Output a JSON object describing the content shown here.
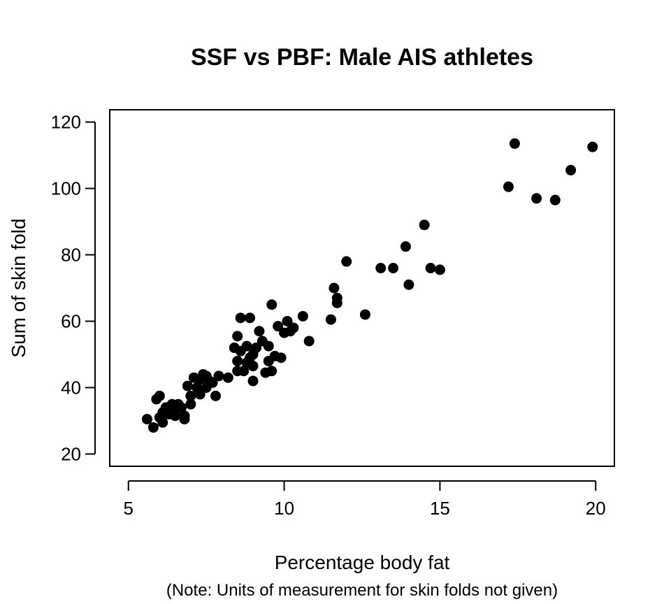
{
  "chart_data": {
    "type": "scatter",
    "title": "SSF vs PBF: Male AIS athletes",
    "xlabel": "Percentage body fat",
    "ylabel": "Sum of skin fold",
    "note": "(Note: Units of measurement for skin folds not given)",
    "xlim": [
      4.4,
      20.6
    ],
    "ylim": [
      16.3,
      123.7
    ],
    "xticks": [
      5,
      10,
      15,
      20
    ],
    "yticks": [
      20,
      40,
      60,
      80,
      100,
      120
    ],
    "grid": false,
    "legend": "none",
    "point_color": "#000000",
    "series": [
      {
        "points": [
          [
            5.6,
            30.5
          ],
          [
            5.8,
            28.0
          ],
          [
            5.9,
            36.5
          ],
          [
            6.0,
            37.5
          ],
          [
            6.0,
            31.0
          ],
          [
            6.1,
            32.5
          ],
          [
            6.1,
            29.5
          ],
          [
            6.2,
            34.0
          ],
          [
            6.3,
            32.0
          ],
          [
            6.4,
            35.0
          ],
          [
            6.5,
            31.5
          ],
          [
            6.5,
            33.0
          ],
          [
            6.6,
            35.0
          ],
          [
            6.7,
            34.0
          ],
          [
            6.8,
            30.5
          ],
          [
            6.8,
            31.5
          ],
          [
            6.9,
            40.5
          ],
          [
            7.0,
            37.5
          ],
          [
            7.0,
            35.0
          ],
          [
            7.1,
            43.0
          ],
          [
            7.2,
            40.0
          ],
          [
            7.3,
            38.0
          ],
          [
            7.3,
            42.5
          ],
          [
            7.4,
            44.0
          ],
          [
            7.5,
            40.0
          ],
          [
            7.5,
            43.5
          ],
          [
            7.6,
            42.0
          ],
          [
            7.7,
            41.5
          ],
          [
            7.8,
            37.5
          ],
          [
            7.9,
            43.5
          ],
          [
            8.2,
            43.0
          ],
          [
            8.4,
            52.0
          ],
          [
            8.5,
            55.5
          ],
          [
            8.5,
            48.0
          ],
          [
            8.5,
            45.0
          ],
          [
            8.6,
            61.0
          ],
          [
            8.6,
            51.0
          ],
          [
            8.7,
            45.0
          ],
          [
            8.8,
            52.5
          ],
          [
            8.8,
            47.5
          ],
          [
            8.9,
            61.0
          ],
          [
            8.9,
            49.0
          ],
          [
            9.0,
            46.5
          ],
          [
            9.0,
            42.0
          ],
          [
            9.0,
            50.0
          ],
          [
            9.1,
            52.0
          ],
          [
            9.2,
            57.0
          ],
          [
            9.3,
            54.0
          ],
          [
            9.4,
            44.5
          ],
          [
            9.5,
            52.5
          ],
          [
            9.5,
            48.0
          ],
          [
            9.6,
            65.0
          ],
          [
            9.6,
            45.0
          ],
          [
            9.7,
            49.5
          ],
          [
            9.8,
            58.5
          ],
          [
            9.9,
            49.0
          ],
          [
            10.0,
            56.5
          ],
          [
            10.1,
            60.0
          ],
          [
            10.2,
            57.0
          ],
          [
            10.3,
            58.0
          ],
          [
            10.6,
            61.5
          ],
          [
            10.8,
            54.0
          ],
          [
            11.5,
            60.5
          ],
          [
            11.6,
            70.0
          ],
          [
            11.7,
            65.5
          ],
          [
            11.7,
            67.0
          ],
          [
            12.0,
            78.0
          ],
          [
            12.6,
            62.0
          ],
          [
            13.1,
            76.0
          ],
          [
            13.5,
            76.0
          ],
          [
            13.9,
            82.5
          ],
          [
            14.0,
            71.0
          ],
          [
            14.5,
            89.0
          ],
          [
            14.7,
            76.0
          ],
          [
            15.0,
            75.5
          ],
          [
            17.2,
            100.5
          ],
          [
            17.4,
            113.5
          ],
          [
            18.1,
            97.0
          ],
          [
            18.7,
            96.5
          ],
          [
            19.2,
            105.5
          ],
          [
            19.9,
            112.5
          ]
        ]
      }
    ]
  }
}
